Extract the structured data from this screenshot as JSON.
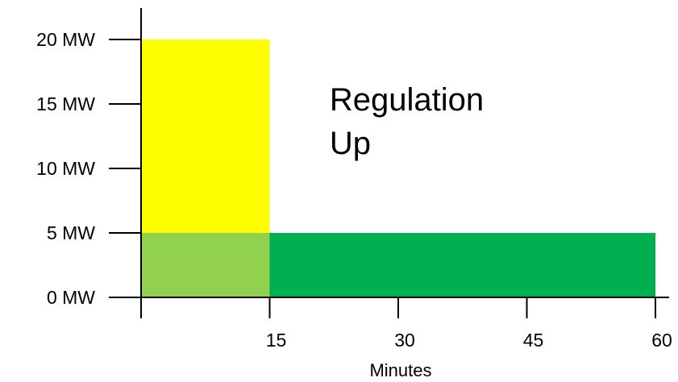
{
  "chart_data": {
    "type": "bar",
    "xlabel": "Minutes",
    "ylabel": "",
    "title": "",
    "xlim": [
      0,
      60
    ],
    "ylim": [
      0,
      20
    ],
    "x_ticks": [
      15,
      30,
      45,
      60
    ],
    "x_tick_labels": [
      "15",
      "30",
      "45",
      "60"
    ],
    "y_ticks": [
      0,
      5,
      10,
      15,
      20
    ],
    "y_tick_labels": [
      "0 MW",
      "5 MW",
      "10 MW",
      "15 MW",
      "20 MW"
    ],
    "grid": false,
    "legend": "none",
    "blocks": [
      {
        "x_start": 0,
        "x_end": 15,
        "y_start": 5,
        "y_end": 20,
        "color": "#FFFF00"
      },
      {
        "x_start": 0,
        "x_end": 15,
        "y_start": 0,
        "y_end": 5,
        "color": "#92D050"
      },
      {
        "x_start": 15,
        "x_end": 60,
        "y_start": 0,
        "y_end": 5,
        "color": "#00B050"
      }
    ],
    "annotations": [
      {
        "lines": [
          "Regulation",
          "Up"
        ],
        "x": 22,
        "y": 14.5
      }
    ]
  }
}
